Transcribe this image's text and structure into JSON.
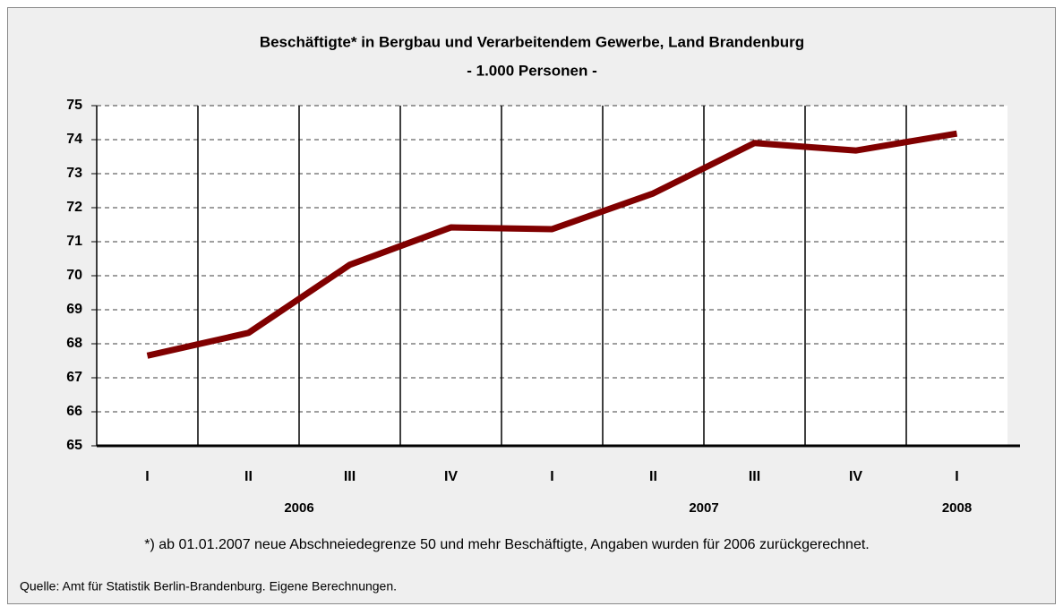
{
  "chart_data": {
    "type": "line",
    "title": "Beschäftigte* in Bergbau und Verarbeitendem Gewerbe, Land Brandenburg",
    "subtitle": "- 1.000 Personen -",
    "categories": [
      "I",
      "II",
      "III",
      "IV",
      "I",
      "II",
      "III",
      "IV",
      "I"
    ],
    "groups": [
      {
        "label": "2006",
        "from": 0,
        "to": 3
      },
      {
        "label": "2007",
        "from": 4,
        "to": 7
      },
      {
        "label": "2008",
        "from": 8,
        "to": 8
      }
    ],
    "series": [
      {
        "name": "Beschäftigte",
        "color": "#800000",
        "values": [
          67.65,
          68.32,
          70.32,
          71.42,
          71.37,
          72.42,
          73.9,
          73.68,
          74.18
        ]
      }
    ],
    "ylim": [
      65,
      75
    ],
    "yticks": [
      65,
      66,
      67,
      68,
      69,
      70,
      71,
      72,
      73,
      74,
      75
    ],
    "grid": true,
    "footnote": "*) ab 01.01.2007 neue Abschneiedegrenze 50 und mehr Beschäftigte, Angaben wurden für 2006 zurückgerechnet.",
    "source": "Quelle: Amt für Statistik Berlin-Brandenburg. Eigene Berechnungen."
  }
}
